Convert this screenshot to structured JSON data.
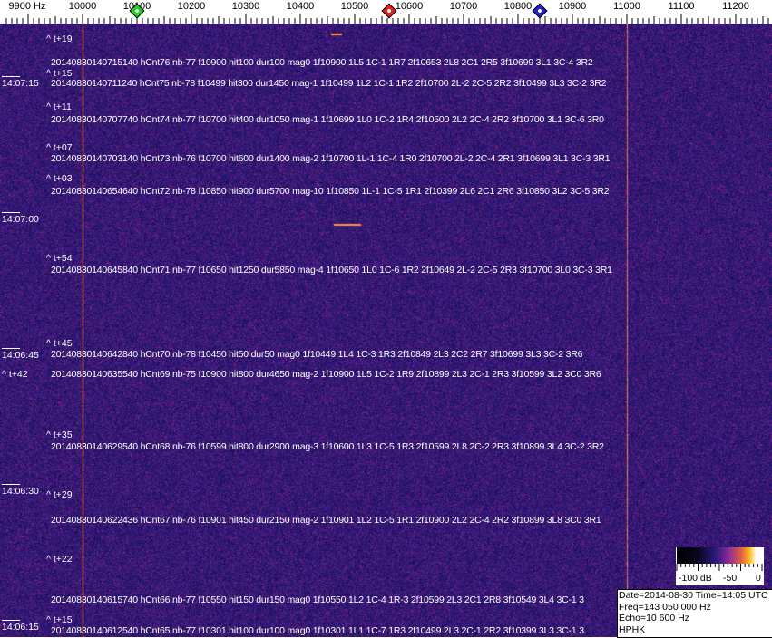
{
  "frequency_axis": {
    "labels": [
      "9900 Hz",
      "10000",
      "10100",
      "10200",
      "10300",
      "10400",
      "10500",
      "10600",
      "10700",
      "10800",
      "10900",
      "11000",
      "11100",
      "11200"
    ],
    "values_hz": [
      9900,
      10000,
      10100,
      10200,
      10300,
      10400,
      10500,
      10600,
      10700,
      10800,
      10900,
      11000,
      11100,
      11200
    ]
  },
  "markers": [
    {
      "name": "green",
      "color": "#22cc22",
      "freq_hz": 10100
    },
    {
      "name": "red",
      "color": "#dd2222",
      "freq_hz": 10563
    },
    {
      "name": "blue",
      "color": "#2222cc",
      "freq_hz": 10840
    }
  ],
  "time_labels": [
    "14:07:15",
    "14:07:00",
    "14:06:45",
    "14:06:30",
    "14:06:15"
  ],
  "offset_labels": [
    "^ t+19",
    "^ t+15",
    "^ t+11",
    "^ t+07",
    "^ t+03",
    "^ t+54",
    "^ t+45",
    "^ t+42",
    "^ t+35",
    "^ t+29",
    "^ t+22",
    "^ t+15"
  ],
  "events": [
    "20140830140715140 hCnt76 nb-77 f10900 hit100 dur100 mag0 1f10900 1L5 1C-1 1R7 2f10653 2L8 2C1 2R5 3f10699 3L1 3C-4 3R2",
    "20140830140711240 hCnt75 nb-78 f10499 hit300 dur1450 mag-1 1f10499 1L2 1C-1 1R2 2f10700 2L-2 2C-5 2R2 3f10499 3L3 3C-2 3R2",
    "20140830140707740 hCnt74 nb-77 f10700 hit400 dur1050 mag-1 1f10699 1L0 1C-2 1R4 2f10500 2L2 2C-4 2R2 3f10700 3L1 3C-6 3R0",
    "20140830140703140 hCnt73 nb-76 f10700 hit600 dur1400 mag-2 1f10700 1L-1 1C-4 1R0 2f10700 2L-2 2C-4 2R1 3f10699 3L1 3C-3 3R1",
    "20140830140654640 hCnt72 nb-78 f10850 hit900 dur5700 mag-10 1f10850 1L-1 1C-5 1R1 2f10399 2L6 2C1 2R6 3f10850 3L2 3C-5 3R2",
    "20140830140645840 hCnt71 nb-77 f10650 hit1250 dur5850 mag-4 1f10650 1L0 1C-6 1R2 2f10649 2L-2 2C-5 2R3 3f10700 3L0 3C-3 3R1",
    "20140830140642840 hCnt70 nb-78 f10450 hit50 dur50 mag0 1f10449 1L4 1C-3 1R3 2f10849 2L3 2C2 2R7 3f10699 3L3 3C-2 3R6",
    "20140830140635540 hCnt69 nb-75 f10900 hit800 dur4650 mag-2 1f10900 1L5 1C-2 1R9 2f10899 2L3 2C-1 2R3 3f10599 3L2 3C0 3R6",
    "20140830140629540 hCnt68 nb-76 f10599 hit800 dur2900 mag-3 1f10600 1L3 1C-5 1R3 2f10599 2L8 2C-2 2R3 3f10899 3L4 3C-2 3R2",
    "20140830140622436 hCnt67 nb-76 f10901 hit450 dur2150 mag-2 1f10901 1L2 1C-5 1R1 2f10900 2L2 2C-4 2R2 3f10899 3L8 3C0 3R1",
    "20140830140615740 hCnt66 nb-77 f10550 hit150 dur150 mag0 1f10550 1L2 1C-4 1R-3 2f10599 2L3 2C1 2R8 3f10549 3L4 3C-1 3",
    "20140830140612540 hCnt65 nb-77 f10301 hit100 dur100 mag0 1f10301 1L1 1C-7 1R3 2f10499 2L3 2C-1 2R2 3f10399 3L3 3C-1 3"
  ],
  "colorbar": {
    "labels": [
      "-100 dB",
      "-50",
      "0"
    ]
  },
  "info": {
    "date_time": "Date=2014-08-30 Time=14:05 UTC",
    "freq": "Freq=143 050 000 Hz",
    "echo": "Echo=10 600 Hz",
    "station": "HPHK"
  },
  "colors": {
    "background": "#2a1a7a",
    "carrier": "#ff8a30",
    "text": "#ffffff"
  }
}
